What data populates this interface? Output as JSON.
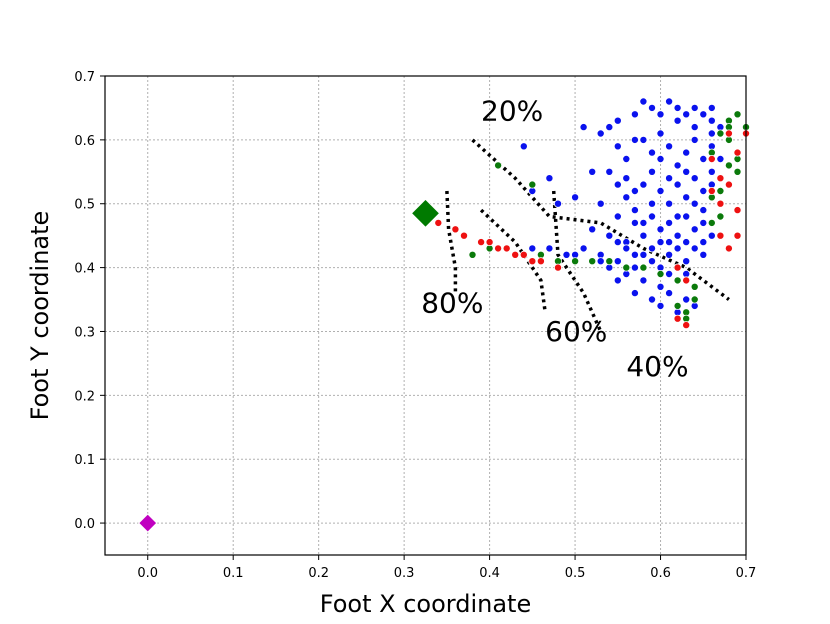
{
  "chart_data": {
    "type": "scatter",
    "xlabel": "Foot X coordinate",
    "ylabel": "Foot Y coordinate",
    "xlim": [
      -0.05,
      0.7
    ],
    "ylim": [
      -0.05,
      0.7
    ],
    "xticks": [
      "0.0",
      "0.1",
      "0.2",
      "0.3",
      "0.4",
      "0.5",
      "0.6",
      "0.7"
    ],
    "yticks": [
      "0.0",
      "0.1",
      "0.2",
      "0.3",
      "0.4",
      "0.5",
      "0.6",
      "0.7"
    ],
    "grid": true,
    "annotations": [
      {
        "text": "20%",
        "x": 0.39,
        "y": 0.63
      },
      {
        "text": "80%",
        "x": 0.32,
        "y": 0.33
      },
      {
        "text": "60%",
        "x": 0.465,
        "y": 0.285
      },
      {
        "text": "40%",
        "x": 0.56,
        "y": 0.23
      }
    ],
    "contours": [
      {
        "label": "80%",
        "points": [
          [
            0.35,
            0.52
          ],
          [
            0.352,
            0.46
          ],
          [
            0.36,
            0.4
          ],
          [
            0.36,
            0.36
          ]
        ]
      },
      {
        "label": "60%",
        "points": [
          [
            0.39,
            0.49
          ],
          [
            0.43,
            0.44
          ],
          [
            0.46,
            0.38
          ],
          [
            0.465,
            0.33
          ]
        ]
      },
      {
        "label": "40%",
        "points": [
          [
            0.475,
            0.52
          ],
          [
            0.48,
            0.42
          ],
          [
            0.51,
            0.36
          ],
          [
            0.53,
            0.3
          ]
        ]
      },
      {
        "label": "20%",
        "points": [
          [
            0.38,
            0.6
          ],
          [
            0.43,
            0.54
          ],
          [
            0.47,
            0.48
          ],
          [
            0.53,
            0.47
          ],
          [
            0.58,
            0.43
          ],
          [
            0.63,
            0.4
          ],
          [
            0.68,
            0.35
          ]
        ]
      }
    ],
    "markers": [
      {
        "name": "",
        "shape": "diamond",
        "color": "#c000c0",
        "x": 0.0,
        "y": 0.0,
        "size": 9
      },
      {
        "name": "",
        "shape": "diamond",
        "color": "#007a00",
        "x": 0.325,
        "y": 0.485,
        "size": 14
      }
    ],
    "series": [
      {
        "color": "#0a12ee",
        "points": [
          [
            0.44,
            0.59
          ],
          [
            0.45,
            0.52
          ],
          [
            0.47,
            0.54
          ],
          [
            0.48,
            0.5
          ],
          [
            0.5,
            0.51
          ],
          [
            0.51,
            0.62
          ],
          [
            0.52,
            0.55
          ],
          [
            0.53,
            0.61
          ],
          [
            0.54,
            0.62
          ],
          [
            0.55,
            0.63
          ],
          [
            0.56,
            0.57
          ],
          [
            0.57,
            0.64
          ],
          [
            0.58,
            0.66
          ],
          [
            0.59,
            0.65
          ],
          [
            0.6,
            0.64
          ],
          [
            0.61,
            0.66
          ],
          [
            0.62,
            0.65
          ],
          [
            0.63,
            0.64
          ],
          [
            0.64,
            0.65
          ],
          [
            0.65,
            0.64
          ],
          [
            0.66,
            0.65
          ],
          [
            0.62,
            0.63
          ],
          [
            0.64,
            0.62
          ],
          [
            0.66,
            0.63
          ],
          [
            0.67,
            0.62
          ],
          [
            0.55,
            0.59
          ],
          [
            0.57,
            0.6
          ],
          [
            0.59,
            0.58
          ],
          [
            0.6,
            0.57
          ],
          [
            0.61,
            0.59
          ],
          [
            0.63,
            0.58
          ],
          [
            0.65,
            0.57
          ],
          [
            0.66,
            0.59
          ],
          [
            0.54,
            0.55
          ],
          [
            0.56,
            0.54
          ],
          [
            0.58,
            0.53
          ],
          [
            0.6,
            0.52
          ],
          [
            0.62,
            0.53
          ],
          [
            0.64,
            0.54
          ],
          [
            0.66,
            0.55
          ],
          [
            0.53,
            0.5
          ],
          [
            0.55,
            0.48
          ],
          [
            0.57,
            0.49
          ],
          [
            0.59,
            0.48
          ],
          [
            0.61,
            0.47
          ],
          [
            0.63,
            0.48
          ],
          [
            0.65,
            0.49
          ],
          [
            0.67,
            0.5
          ],
          [
            0.52,
            0.46
          ],
          [
            0.54,
            0.45
          ],
          [
            0.56,
            0.44
          ],
          [
            0.58,
            0.45
          ],
          [
            0.6,
            0.44
          ],
          [
            0.62,
            0.45
          ],
          [
            0.64,
            0.46
          ],
          [
            0.66,
            0.45
          ],
          [
            0.51,
            0.43
          ],
          [
            0.53,
            0.42
          ],
          [
            0.55,
            0.41
          ],
          [
            0.57,
            0.42
          ],
          [
            0.59,
            0.41
          ],
          [
            0.61,
            0.42
          ],
          [
            0.63,
            0.41
          ],
          [
            0.65,
            0.42
          ],
          [
            0.54,
            0.4
          ],
          [
            0.56,
            0.39
          ],
          [
            0.58,
            0.38
          ],
          [
            0.6,
            0.37
          ],
          [
            0.62,
            0.38
          ],
          [
            0.64,
            0.37
          ],
          [
            0.57,
            0.36
          ],
          [
            0.59,
            0.35
          ],
          [
            0.61,
            0.36
          ],
          [
            0.63,
            0.35
          ],
          [
            0.6,
            0.34
          ],
          [
            0.62,
            0.33
          ],
          [
            0.64,
            0.34
          ],
          [
            0.45,
            0.43
          ],
          [
            0.47,
            0.43
          ],
          [
            0.49,
            0.42
          ],
          [
            0.5,
            0.42
          ],
          [
            0.52,
            0.41
          ],
          [
            0.53,
            0.41
          ],
          [
            0.56,
            0.43
          ],
          [
            0.58,
            0.42
          ],
          [
            0.6,
            0.4
          ],
          [
            0.62,
            0.4
          ],
          [
            0.59,
            0.43
          ],
          [
            0.61,
            0.44
          ],
          [
            0.63,
            0.44
          ],
          [
            0.57,
            0.47
          ],
          [
            0.59,
            0.5
          ],
          [
            0.61,
            0.5
          ],
          [
            0.63,
            0.51
          ],
          [
            0.65,
            0.52
          ],
          [
            0.62,
            0.56
          ],
          [
            0.64,
            0.6
          ],
          [
            0.66,
            0.61
          ],
          [
            0.6,
            0.61
          ],
          [
            0.58,
            0.6
          ],
          [
            0.56,
            0.51
          ],
          [
            0.55,
            0.44
          ],
          [
            0.57,
            0.4
          ],
          [
            0.55,
            0.38
          ],
          [
            0.61,
            0.39
          ],
          [
            0.63,
            0.39
          ],
          [
            0.62,
            0.43
          ],
          [
            0.64,
            0.43
          ],
          [
            0.65,
            0.44
          ],
          [
            0.65,
            0.47
          ],
          [
            0.6,
            0.46
          ],
          [
            0.58,
            0.47
          ],
          [
            0.62,
            0.48
          ],
          [
            0.64,
            0.5
          ],
          [
            0.67,
            0.57
          ],
          [
            0.66,
            0.53
          ],
          [
            0.63,
            0.55
          ],
          [
            0.59,
            0.55
          ],
          [
            0.61,
            0.54
          ],
          [
            0.57,
            0.52
          ],
          [
            0.55,
            0.53
          ]
        ]
      },
      {
        "color": "#0b7a0b",
        "points": [
          [
            0.41,
            0.56
          ],
          [
            0.45,
            0.53
          ],
          [
            0.38,
            0.42
          ],
          [
            0.4,
            0.43
          ],
          [
            0.42,
            0.43
          ],
          [
            0.46,
            0.42
          ],
          [
            0.48,
            0.41
          ],
          [
            0.5,
            0.41
          ],
          [
            0.52,
            0.41
          ],
          [
            0.54,
            0.41
          ],
          [
            0.56,
            0.4
          ],
          [
            0.58,
            0.4
          ],
          [
            0.6,
            0.39
          ],
          [
            0.62,
            0.38
          ],
          [
            0.64,
            0.37
          ],
          [
            0.63,
            0.33
          ],
          [
            0.63,
            0.32
          ],
          [
            0.62,
            0.34
          ],
          [
            0.64,
            0.35
          ],
          [
            0.66,
            0.51
          ],
          [
            0.67,
            0.52
          ],
          [
            0.68,
            0.56
          ],
          [
            0.69,
            0.57
          ],
          [
            0.67,
            0.61
          ],
          [
            0.68,
            0.63
          ],
          [
            0.69,
            0.64
          ],
          [
            0.7,
            0.62
          ],
          [
            0.66,
            0.58
          ],
          [
            0.68,
            0.6
          ],
          [
            0.69,
            0.55
          ],
          [
            0.67,
            0.48
          ],
          [
            0.66,
            0.47
          ],
          [
            0.68,
            0.62
          ]
        ]
      },
      {
        "color": "#ee1111",
        "points": [
          [
            0.34,
            0.47
          ],
          [
            0.36,
            0.46
          ],
          [
            0.37,
            0.45
          ],
          [
            0.39,
            0.44
          ],
          [
            0.4,
            0.44
          ],
          [
            0.41,
            0.43
          ],
          [
            0.42,
            0.43
          ],
          [
            0.43,
            0.42
          ],
          [
            0.44,
            0.42
          ],
          [
            0.45,
            0.41
          ],
          [
            0.46,
            0.41
          ],
          [
            0.48,
            0.4
          ],
          [
            0.62,
            0.4
          ],
          [
            0.63,
            0.38
          ],
          [
            0.62,
            0.32
          ],
          [
            0.63,
            0.31
          ],
          [
            0.66,
            0.52
          ],
          [
            0.67,
            0.54
          ],
          [
            0.68,
            0.53
          ],
          [
            0.69,
            0.49
          ],
          [
            0.67,
            0.45
          ],
          [
            0.68,
            0.43
          ],
          [
            0.69,
            0.45
          ],
          [
            0.68,
            0.61
          ],
          [
            0.7,
            0.61
          ],
          [
            0.69,
            0.58
          ],
          [
            0.66,
            0.57
          ],
          [
            0.67,
            0.5
          ]
        ]
      }
    ]
  }
}
